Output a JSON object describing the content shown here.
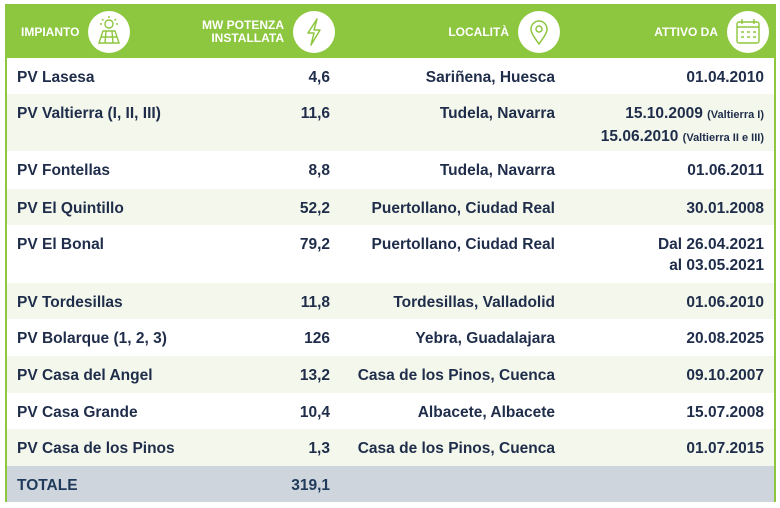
{
  "header": {
    "columns": [
      {
        "lines": [
          "IMPIANTO"
        ]
      },
      {
        "lines": [
          "MW POTENZA",
          "INSTALLATA"
        ]
      },
      {
        "lines": [
          "LOCALITÀ"
        ]
      },
      {
        "lines": [
          "ATTIVO DA"
        ]
      }
    ]
  },
  "rows": [
    {
      "impianto": "PV Lasesa",
      "potenza": "4,6",
      "localita": "Sariñena, Huesca",
      "attivo_da": [
        {
          "text": "01.04.2010"
        }
      ]
    },
    {
      "impianto": "PV Valtierra (I, II, III)",
      "potenza": "11,6",
      "localita": "Tudela, Navarra",
      "attivo_da": [
        {
          "text": "15.10.2009",
          "note": "(Valtierra I)"
        },
        {
          "text": "15.06.2010",
          "note": "(Valtierra II e III)"
        }
      ]
    },
    {
      "impianto": "PV Fontellas",
      "potenza": "8,8",
      "localita": "Tudela, Navarra",
      "attivo_da": [
        {
          "text": "01.06.2011"
        }
      ]
    },
    {
      "impianto": "PV El Quintillo",
      "potenza": "52,2",
      "localita": "Puertollano, Ciudad Real",
      "attivo_da": [
        {
          "text": "30.01.2008"
        }
      ]
    },
    {
      "impianto": "PV El Bonal",
      "potenza": "79,2",
      "localita": "Puertollano, Ciudad Real",
      "attivo_da": [
        {
          "text": "Dal 26.04.2021"
        },
        {
          "text": "al 03.05.2021"
        }
      ]
    },
    {
      "impianto": "PV Tordesillas",
      "potenza": "11,8",
      "localita": "Tordesillas, Valladolid",
      "attivo_da": [
        {
          "text": "01.06.2010"
        }
      ]
    },
    {
      "impianto": "PV Bolarque (1, 2, 3)",
      "potenza": "126",
      "localita": "Yebra, Guadalajara",
      "attivo_da": [
        {
          "text": "20.08.2025"
        }
      ]
    },
    {
      "impianto": "PV Casa del Angel",
      "potenza": "13,2",
      "localita": "Casa de los Pinos, Cuenca",
      "attivo_da": [
        {
          "text": "09.10.2007"
        }
      ]
    },
    {
      "impianto": "PV Casa Grande",
      "potenza": "10,4",
      "localita": "Albacete, Albacete",
      "attivo_da": [
        {
          "text": "15.07.2008"
        }
      ]
    },
    {
      "impianto": "PV Casa de los Pinos",
      "potenza": "1,3",
      "localita": "Casa de los Pinos, Cuenca",
      "attivo_da": [
        {
          "text": "01.07.2015"
        }
      ]
    }
  ],
  "totale": {
    "label": "TOTALE",
    "potenza": "319,1"
  }
}
